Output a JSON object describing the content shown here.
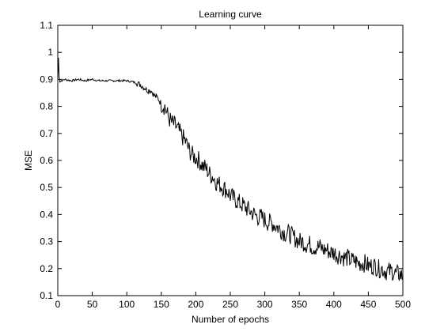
{
  "chart_data": {
    "type": "line",
    "title": "Learning curve",
    "xlabel": "Number of epochs",
    "ylabel": "MSE",
    "xlim": [
      0,
      500
    ],
    "ylim": [
      0.1,
      1.1
    ],
    "xticks": [
      0,
      50,
      100,
      150,
      200,
      250,
      300,
      350,
      400,
      450,
      500
    ],
    "yticks": [
      0.1,
      0.2,
      0.3,
      0.4,
      0.5,
      0.6,
      0.7,
      0.8,
      0.9,
      1,
      1.1
    ],
    "grid": false,
    "line_color": "#000000",
    "series": [
      {
        "x": [
          0,
          1,
          2,
          3,
          5,
          10,
          20,
          30,
          40,
          50,
          60,
          70,
          80,
          90,
          100,
          110,
          115,
          120,
          125,
          130,
          135,
          140,
          145,
          150,
          155,
          160,
          165,
          170,
          175,
          180,
          185,
          190,
          195,
          200,
          205,
          210,
          215,
          220,
          225,
          230,
          235,
          240,
          245,
          250,
          255,
          260,
          265,
          270,
          275,
          280,
          285,
          290,
          295,
          300,
          305,
          310,
          315,
          320,
          325,
          330,
          335,
          340,
          345,
          350,
          355,
          360,
          365,
          370,
          375,
          380,
          385,
          390,
          395,
          400,
          405,
          410,
          415,
          420,
          425,
          430,
          435,
          440,
          445,
          450,
          455,
          460,
          465,
          470,
          475,
          480,
          485,
          490,
          495,
          500
        ],
        "y": [
          0.9,
          0.98,
          0.91,
          0.89,
          0.895,
          0.9,
          0.895,
          0.9,
          0.895,
          0.9,
          0.895,
          0.895,
          0.895,
          0.895,
          0.895,
          0.89,
          0.885,
          0.88,
          0.87,
          0.86,
          0.86,
          0.84,
          0.83,
          0.81,
          0.8,
          0.76,
          0.74,
          0.73,
          0.71,
          0.69,
          0.67,
          0.64,
          0.62,
          0.61,
          0.6,
          0.58,
          0.57,
          0.55,
          0.54,
          0.52,
          0.51,
          0.5,
          0.49,
          0.47,
          0.46,
          0.45,
          0.44,
          0.43,
          0.42,
          0.41,
          0.4,
          0.39,
          0.39,
          0.38,
          0.37,
          0.37,
          0.36,
          0.35,
          0.34,
          0.33,
          0.33,
          0.32,
          0.31,
          0.3,
          0.3,
          0.29,
          0.29,
          0.28,
          0.28,
          0.28,
          0.27,
          0.27,
          0.26,
          0.26,
          0.25,
          0.25,
          0.24,
          0.24,
          0.23,
          0.23,
          0.22,
          0.22,
          0.22,
          0.21,
          0.21,
          0.21,
          0.2,
          0.2,
          0.19,
          0.19,
          0.19,
          0.18,
          0.18,
          0.17
        ]
      }
    ]
  }
}
